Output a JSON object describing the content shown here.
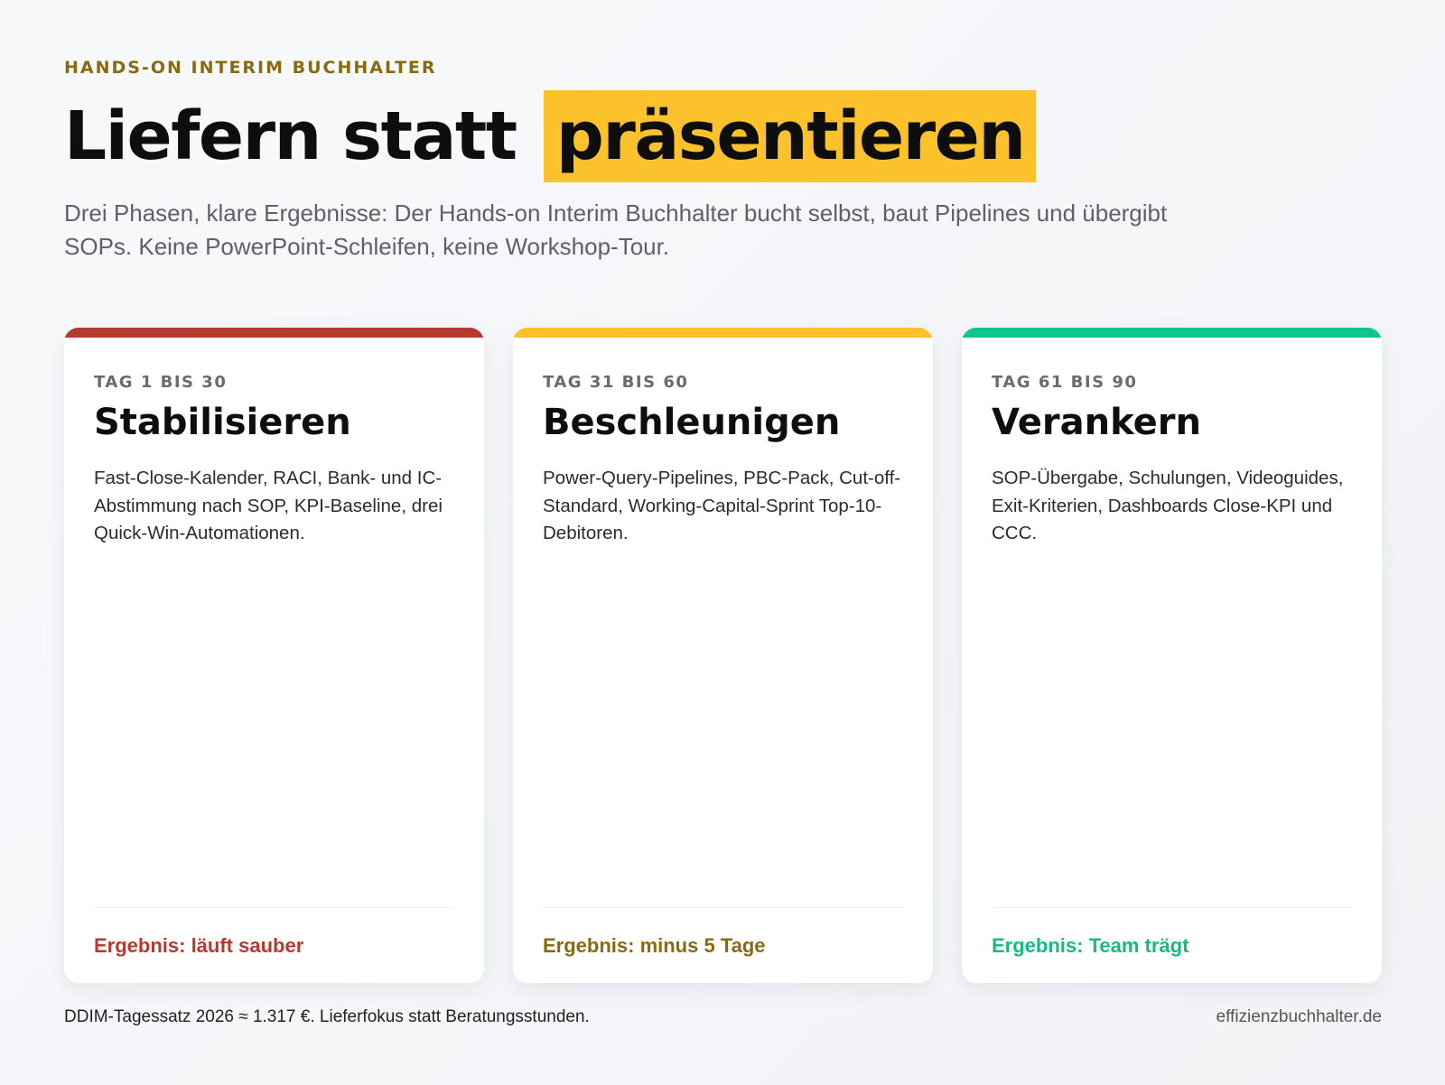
{
  "eyebrow": "HANDS-ON INTERIM BUCHHALTER",
  "title": {
    "plain": "Liefern statt",
    "highlight": "präsentieren"
  },
  "subtitle": "Drei Phasen, klare Ergebnisse: Der Hands-on Interim Buchhalter bucht selbst, baut Pipelines und übergibt SOPs. Keine PowerPoint-Schleifen, keine Workshop-Tour.",
  "colors": {
    "highlight": "#fcc22b",
    "eyebrow": "#8a6a10",
    "phase1": "#b63a2f",
    "phase2": "#fcc22b",
    "phase3": "#12c48b",
    "result1": "#b63a2f",
    "result2": "#8a6a10",
    "result3": "#1ab884"
  },
  "phases": [
    {
      "range": "TAG 1 BIS 30",
      "name": "Stabilisieren",
      "description": "Fast-Close-Kalender, RACI, Bank- und IC-Abstimmung nach SOP, KPI-Baseline, drei Quick-Win-Automationen.",
      "result": "Ergebnis: läuft sauber"
    },
    {
      "range": "TAG 31 BIS 60",
      "name": "Beschleunigen",
      "description": "Power-Query-Pipelines, PBC-Pack, Cut-off-Standard, Working-Capital-Sprint Top-10-Debitoren.",
      "result": "Ergebnis: minus 5 Tage"
    },
    {
      "range": "TAG 61 BIS 90",
      "name": "Verankern",
      "description": "SOP-Übergabe, Schulungen, Videoguides, Exit-Kriterien, Dashboards Close-KPI und CCC.",
      "result": "Ergebnis: Team trägt"
    }
  ],
  "footer": {
    "note": "DDIM-Tagessatz 2026 ≈ 1.317 €. Lieferfokus statt Beratungsstunden.",
    "site": "effizienzbuchhalter.de"
  }
}
